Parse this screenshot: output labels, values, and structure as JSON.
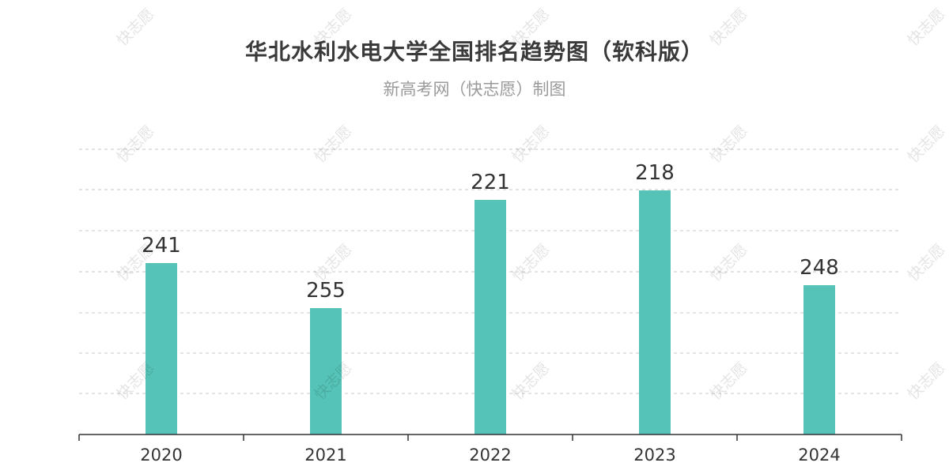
{
  "title": "华北水利水电大学全国排名趋势图（软科版）",
  "subtitle": "新高考网（快志愿）制图",
  "watermark": "快志愿",
  "colors": {
    "bar": "#55c3b7",
    "grid": "#c9c9c9",
    "axis": "#333333",
    "label": "#333333"
  },
  "chart_data": {
    "type": "bar",
    "title": "华北水利水电大学全国排名趋势图（软科版）",
    "subtitle": "新高考网（快志愿）制图",
    "categories": [
      "2020",
      "2021",
      "2022",
      "2023",
      "2024"
    ],
    "values": [
      241,
      255,
      221,
      218,
      248
    ],
    "y_inverted": true,
    "ylim": [
      200,
      270
    ],
    "xlabel": "",
    "ylabel": "",
    "grid": true,
    "legend": "none"
  }
}
